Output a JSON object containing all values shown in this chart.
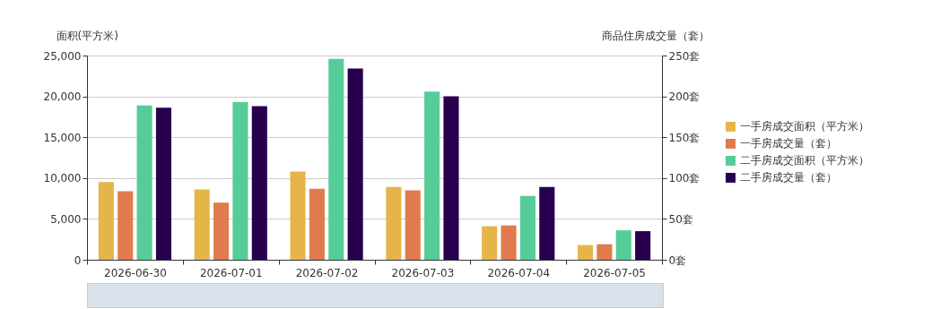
{
  "chart_data": {
    "type": "bar",
    "ylabel": "面积(平方米)",
    "y2label": "商品住房成交量（套）",
    "categories": [
      "2026-06-30",
      "2026-07-01",
      "2026-07-02",
      "2026-07-03",
      "2026-07-04",
      "2026-07-05"
    ],
    "series": [
      {
        "name": "一手房成交面积（平方米）",
        "color": "#e5b54a",
        "values": [
          9500,
          8600,
          10800,
          8900,
          4100,
          1800
        ]
      },
      {
        "name": "一手房成交量（套）",
        "color": "#e07b4d",
        "axis": "y2",
        "values": [
          84,
          70,
          87,
          85,
          42,
          19
        ]
      },
      {
        "name": "二手房成交面积（平方米）",
        "color": "#56cc99",
        "values": [
          18900,
          19300,
          24600,
          20600,
          7800,
          3600
        ]
      },
      {
        "name": "二手房成交量（套）",
        "color": "#26004f",
        "axis": "y2",
        "values": [
          186,
          188,
          234,
          200,
          89,
          35
        ]
      }
    ],
    "ylim": [
      0,
      25000
    ],
    "yticks": [
      0,
      {
        "value": 5000,
        "label": "5,000"
      },
      {
        "value": 10000,
        "label": "10,000"
      },
      {
        "value": 15000,
        "label": "15,000"
      },
      {
        "value": 20000,
        "label": "20,000"
      },
      {
        "value": 25000,
        "label": "25,000"
      }
    ],
    "y2lim": [
      0,
      250
    ],
    "y2ticks": [
      {
        "value": 0,
        "label": "0套"
      },
      {
        "value": 50,
        "label": "50套"
      },
      {
        "value": 100,
        "label": "100套"
      },
      {
        "value": 150,
        "label": "150套"
      },
      {
        "value": 200,
        "label": "200套"
      },
      {
        "value": 250,
        "label": "250套"
      }
    ],
    "grid": "y",
    "legend": "right"
  }
}
